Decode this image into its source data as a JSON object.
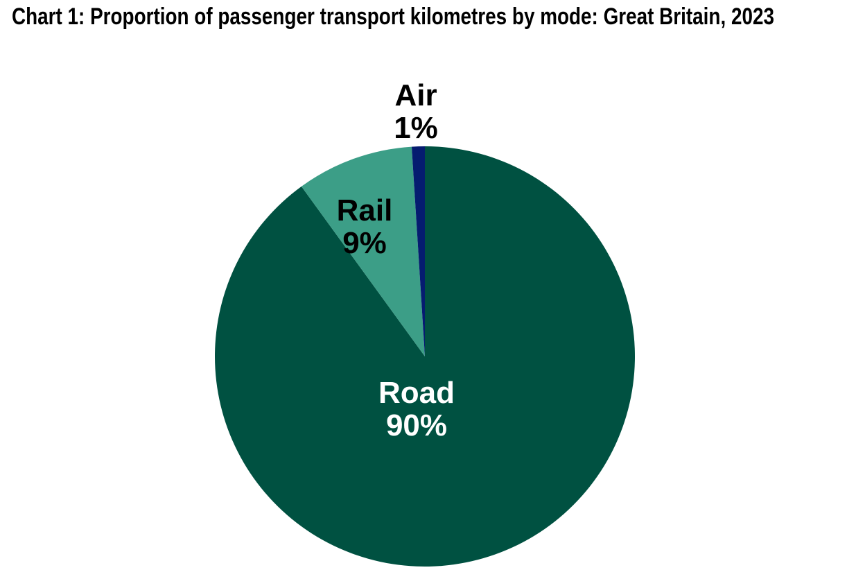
{
  "chart_data": {
    "type": "pie",
    "title": "Chart 1: Proportion of passenger transport kilometres by mode: Great Britain, 2023",
    "title_color": "#000000",
    "categories": [
      "Road",
      "Rail",
      "Air"
    ],
    "values": [
      90,
      9,
      1
    ],
    "unit": "%",
    "start_angle_deg_from_top": 0,
    "direction": "clockwise",
    "legend": "none",
    "background": "#ffffff",
    "slices": [
      {
        "label": "Road",
        "value": 90,
        "value_label": "90%",
        "color": "#005141",
        "label_color": "#ffffff",
        "label_placement": "inside"
      },
      {
        "label": "Rail",
        "value": 9,
        "value_label": "9%",
        "color": "#3c9e87",
        "label_color": "#000000",
        "label_placement": "inside"
      },
      {
        "label": "Air",
        "value": 1,
        "value_label": "1%",
        "color": "#051c70",
        "label_color": "#000000",
        "label_placement": "outside-top"
      }
    ]
  }
}
